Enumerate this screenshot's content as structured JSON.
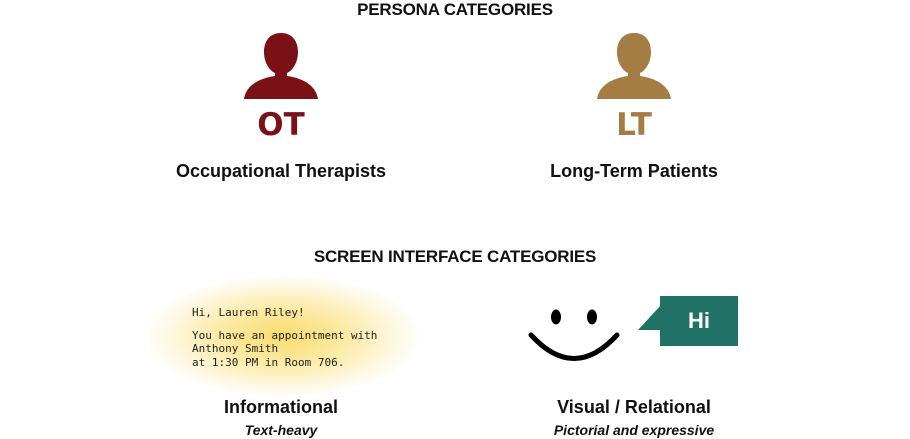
{
  "persona_section": {
    "heading": "PERSONA CATEGORIES",
    "personas": [
      {
        "abbr": "OT",
        "label": "Occupational Therapists",
        "color": "#7a1116",
        "icon": "person-icon"
      },
      {
        "abbr": "LT",
        "label": "Long-Term Patients",
        "color": "#a67c45",
        "icon": "person-icon"
      }
    ]
  },
  "screen_section": {
    "heading": "SCREEN INTERFACE CATEGORIES",
    "informational": {
      "greeting": "Hi, Lauren Riley!",
      "message_lines": [
        "You have an appointment with",
        "Anthony Smith",
        "at 1:30 PM in Room 706."
      ],
      "title": "Informational",
      "subtitle": "Text-heavy",
      "glow_color": "#f9da66"
    },
    "visual": {
      "bubble_text": "Hi",
      "bubble_color": "#1f7265",
      "icon": "smiley-face-icon",
      "title": "Visual / Relational",
      "subtitle": "Pictorial and expressive"
    }
  }
}
